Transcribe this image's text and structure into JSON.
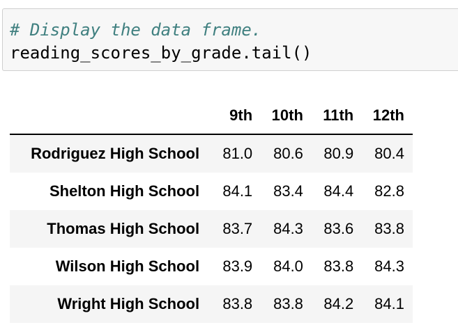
{
  "code_cell": {
    "comment": "# Display the data frame.",
    "code": "reading_scores_by_grade.tail()"
  },
  "dataframe": {
    "columns": [
      "9th",
      "10th",
      "11th",
      "12th"
    ],
    "rows": [
      {
        "index": "Rodriguez High School",
        "values": [
          "81.0",
          "80.6",
          "80.9",
          "80.4"
        ]
      },
      {
        "index": "Shelton High School",
        "values": [
          "84.1",
          "83.4",
          "84.4",
          "82.8"
        ]
      },
      {
        "index": "Thomas High School",
        "values": [
          "83.7",
          "84.3",
          "83.6",
          "83.8"
        ]
      },
      {
        "index": "Wilson High School",
        "values": [
          "83.9",
          "84.0",
          "83.8",
          "84.3"
        ]
      },
      {
        "index": "Wright High School",
        "values": [
          "83.8",
          "83.8",
          "84.2",
          "84.1"
        ]
      }
    ]
  }
}
